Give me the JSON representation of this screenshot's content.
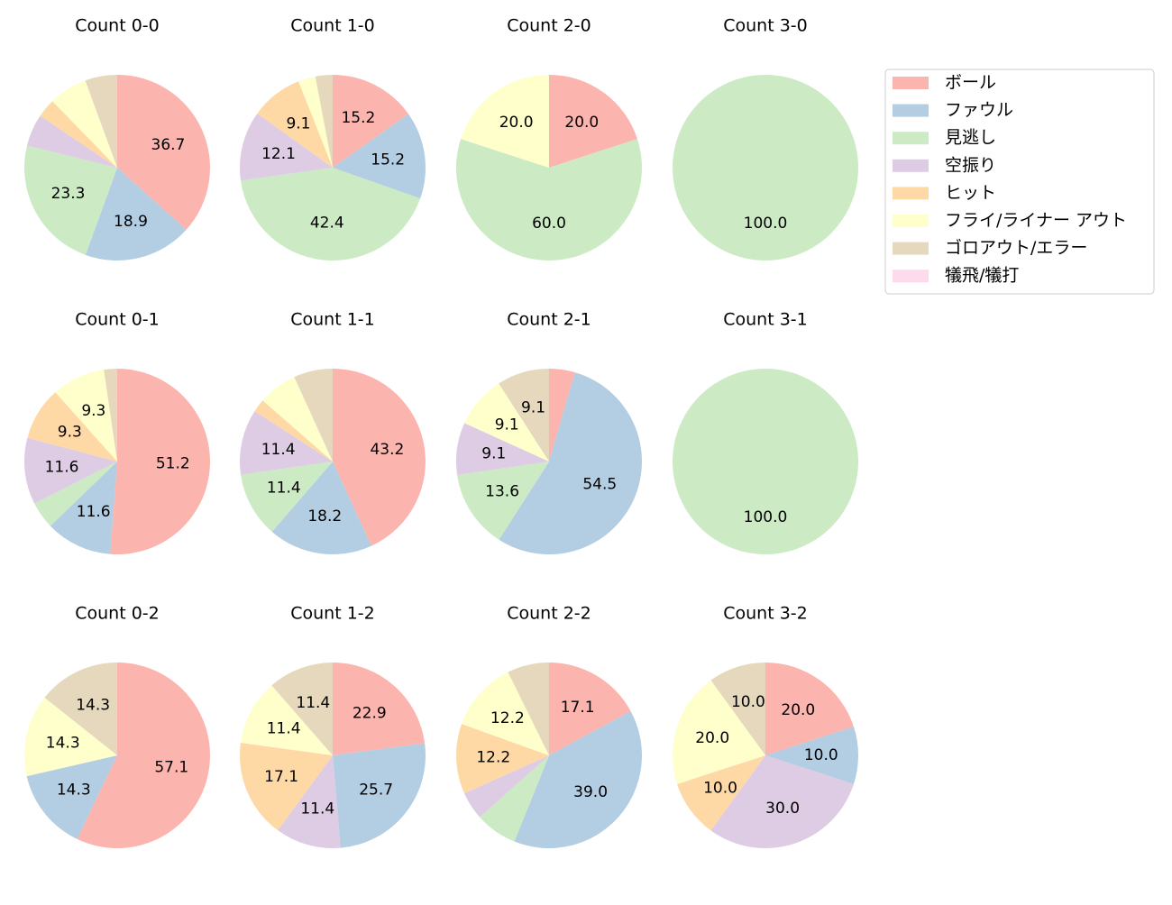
{
  "chart_data": {
    "type": "pie",
    "categories": [
      "ボール",
      "ファウル",
      "見逃し",
      "空振り",
      "ヒット",
      "フライ/ライナー アウト",
      "ゴロアウト/エラー",
      "犠飛/犠打"
    ],
    "colors": [
      "#fbb4ae",
      "#b3cde3",
      "#ccebc5",
      "#decbe4",
      "#fed9a6",
      "#ffffcc",
      "#e5d8bd",
      "#fddaec"
    ],
    "series": [
      {
        "name": "Count 0-0",
        "values": [
          36.7,
          18.9,
          23.3,
          5.6,
          3.3,
          6.7,
          5.6,
          0
        ],
        "value_labels": [
          "36.7",
          "18.9",
          "23.3",
          null,
          null,
          null,
          null,
          null
        ]
      },
      {
        "name": "Count 1-0",
        "values": [
          15.2,
          15.2,
          42.4,
          12.1,
          9.1,
          3.0,
          3.0,
          0
        ],
        "value_labels": [
          "15.2",
          "15.2",
          "42.4",
          "12.1",
          "9.1",
          null,
          null,
          null
        ]
      },
      {
        "name": "Count 2-0",
        "values": [
          20,
          0,
          60,
          0,
          0,
          20,
          0,
          0
        ],
        "value_labels": [
          "20.0",
          null,
          "60.0",
          null,
          null,
          "20.0",
          null,
          null
        ]
      },
      {
        "name": "Count 3-0",
        "values": [
          0,
          0,
          100,
          0,
          0,
          0,
          0,
          0
        ],
        "value_labels": [
          null,
          null,
          "100.0",
          null,
          null,
          null,
          null,
          null
        ]
      },
      {
        "name": "Count 0-1",
        "values": [
          51.2,
          11.6,
          4.7,
          11.6,
          9.3,
          9.3,
          2.3,
          0
        ],
        "value_labels": [
          "51.2",
          "11.6",
          null,
          "11.6",
          "9.3",
          "9.3",
          null,
          null
        ]
      },
      {
        "name": "Count 1-1",
        "values": [
          43.2,
          18.2,
          11.4,
          11.4,
          2.3,
          6.8,
          6.8,
          0
        ],
        "value_labels": [
          "43.2",
          "18.2",
          "11.4",
          "11.4",
          null,
          null,
          null,
          null
        ]
      },
      {
        "name": "Count 2-1",
        "values": [
          4.5,
          54.5,
          13.6,
          9.1,
          0,
          9.1,
          9.1,
          0
        ],
        "value_labels": [
          null,
          "54.5",
          "13.6",
          "9.1",
          null,
          "9.1",
          "9.1",
          null
        ]
      },
      {
        "name": "Count 3-1",
        "values": [
          0,
          0,
          100,
          0,
          0,
          0,
          0,
          0
        ],
        "value_labels": [
          null,
          null,
          "100.0",
          null,
          null,
          null,
          null,
          null
        ]
      },
      {
        "name": "Count 0-2",
        "values": [
          57.1,
          14.3,
          0,
          0,
          0,
          14.3,
          14.3,
          0
        ],
        "value_labels": [
          "57.1",
          "14.3",
          null,
          null,
          null,
          "14.3",
          "14.3",
          null
        ]
      },
      {
        "name": "Count 1-2",
        "values": [
          22.9,
          25.7,
          0,
          11.4,
          17.1,
          11.4,
          11.4,
          0
        ],
        "value_labels": [
          "22.9",
          "25.7",
          null,
          "11.4",
          "17.1",
          "11.4",
          "11.4",
          null
        ]
      },
      {
        "name": "Count 2-2",
        "values": [
          17.1,
          39.0,
          7.3,
          4.9,
          12.2,
          12.2,
          7.3,
          0
        ],
        "value_labels": [
          "17.1",
          "39.0",
          null,
          null,
          "12.2",
          "12.2",
          null,
          null
        ]
      },
      {
        "name": "Count 3-2",
        "values": [
          20,
          10,
          0,
          30,
          10,
          20,
          10,
          0
        ],
        "value_labels": [
          "20.0",
          "10.0",
          null,
          "30.0",
          "10.0",
          "20.0",
          "10.0",
          null
        ]
      }
    ]
  }
}
